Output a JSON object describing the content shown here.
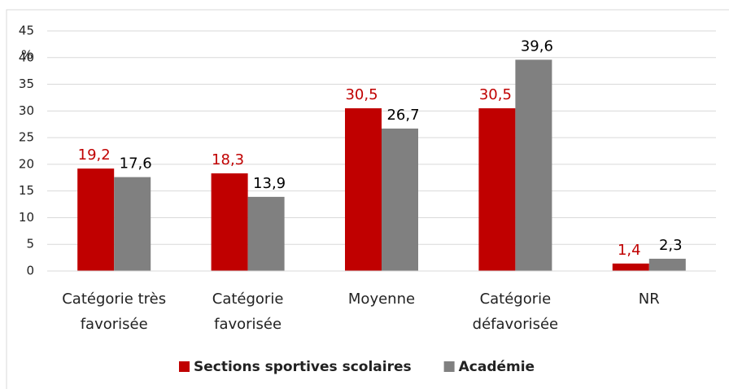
{
  "chart_data": {
    "type": "bar",
    "y_label": "%",
    "categories": [
      "Catégorie très favorisée",
      "Catégorie favorisée",
      "Moyenne",
      "Catégorie défavorisée",
      "NR"
    ],
    "series": [
      {
        "name": "Sections sportives scolaires",
        "color": "#c00000",
        "label_color": "#c00000",
        "values": [
          19.2,
          18.3,
          30.5,
          30.5,
          1.4
        ],
        "value_labels": [
          "19,2",
          "18,3",
          "30,5",
          "30,5",
          "1,4"
        ]
      },
      {
        "name": "Académie",
        "color": "#808080",
        "label_color": "#000000",
        "values": [
          17.6,
          13.9,
          26.7,
          39.6,
          2.3
        ],
        "value_labels": [
          "17,6",
          "13,9",
          "26,7",
          "39,6",
          "2,3"
        ]
      }
    ],
    "ylim": [
      0,
      45
    ],
    "yticks": [
      0,
      5,
      10,
      15,
      20,
      25,
      30,
      35,
      40,
      45
    ],
    "grid": true,
    "legend": "bottom"
  }
}
